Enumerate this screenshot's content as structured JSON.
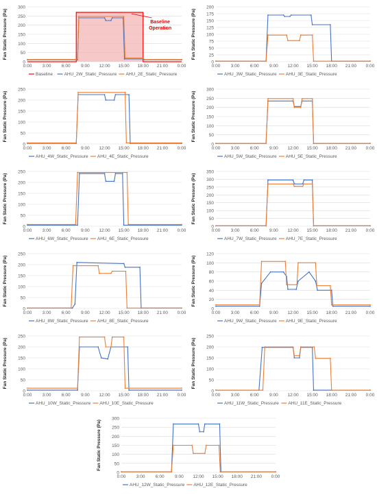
{
  "colors": {
    "blue": "#4472C4",
    "orange": "#ED7D31",
    "baseline": "#FF0000",
    "baseline_fill": "#F4B6B6",
    "grid": "#D9D9D9",
    "axis_text": "#595959",
    "annotation": "#E00000"
  },
  "chart_data": [
    {
      "type": "line",
      "ylabel": "Fan Static Pressure (Pa)",
      "ylim": [
        0,
        300
      ],
      "yticks": [
        0,
        50,
        100,
        150,
        200,
        250,
        300
      ],
      "xticks": [
        "0:00",
        "3:00",
        "6:00",
        "9:00",
        "12:00",
        "15:00",
        "18:00",
        "21:00",
        "0:00"
      ],
      "grid": true,
      "legend": "bottom",
      "annotation": "Baseline Operation",
      "series": [
        {
          "name": "Baseline",
          "color_key": "baseline",
          "x": [
            0,
            7.6,
            7.6,
            18,
            18,
            24
          ],
          "values": [
            0,
            0,
            270,
            270,
            0,
            0
          ]
        },
        {
          "name": "AHU_2W_Static_Pressure",
          "color_key": "blue",
          "x": [
            0,
            7.8,
            8,
            12,
            12.2,
            13,
            13.2,
            14.9,
            15.1,
            18,
            18.2,
            24
          ],
          "values": [
            10,
            10,
            240,
            240,
            225,
            225,
            240,
            240,
            15,
            15,
            10,
            10
          ]
        },
        {
          "name": "AHU_2E_Static_Pressure",
          "color_key": "orange",
          "x": [
            0,
            7.8,
            8,
            15,
            15.2,
            18,
            18.2,
            24
          ],
          "values": [
            12,
            12,
            248,
            248,
            20,
            20,
            12,
            12
          ]
        }
      ]
    },
    {
      "type": "line",
      "ylabel": "Fan Static Pressure (Pa)",
      "ylim": [
        0,
        200
      ],
      "yticks": [
        0,
        25,
        50,
        75,
        100,
        125,
        150,
        175,
        200
      ],
      "xticks": [
        "0:00",
        "3:00",
        "6:00",
        "9:00",
        "12:00",
        "15:00",
        "18:00",
        "21:00",
        "0:00"
      ],
      "grid": true,
      "legend": "bottom",
      "series": [
        {
          "name": "AHU_3W_Static_Pressure",
          "color_key": "blue",
          "x": [
            0,
            7.8,
            8.1,
            10.5,
            10.7,
            11.5,
            11.7,
            14.8,
            15,
            17.8,
            18,
            24
          ],
          "values": [
            2,
            2,
            170,
            170,
            165,
            165,
            170,
            170,
            135,
            135,
            2,
            2
          ]
        },
        {
          "name": "AHU_3E_Static_Pressure",
          "color_key": "orange",
          "x": [
            0,
            7.8,
            8.1,
            11,
            11.2,
            13,
            13.2,
            15,
            15.2,
            24
          ],
          "values": [
            2,
            2,
            97,
            97,
            77,
            77,
            97,
            97,
            2,
            2
          ]
        }
      ]
    },
    {
      "type": "line",
      "ylabel": "Fan Static Pressure (Pa)",
      "ylim": [
        0,
        250
      ],
      "yticks": [
        0,
        50,
        100,
        150,
        200,
        250
      ],
      "xticks": [
        "0:00",
        "3:00",
        "6:00",
        "9:00",
        "12:00",
        "15:00",
        "18:00",
        "21:00",
        "0:00"
      ],
      "grid": true,
      "legend": "bottom",
      "series": [
        {
          "name": "AHU_4W_Static_Pressure",
          "color_key": "blue",
          "x": [
            0,
            7.6,
            7.9,
            12,
            12.2,
            13.5,
            13.7,
            15.8,
            16,
            24
          ],
          "values": [
            3,
            3,
            225,
            225,
            200,
            200,
            225,
            225,
            3,
            3
          ]
        },
        {
          "name": "AHU_4E_Static_Pressure",
          "color_key": "orange",
          "x": [
            0,
            7.6,
            7.9,
            15.2,
            15.4,
            24
          ],
          "values": [
            5,
            5,
            235,
            235,
            5,
            5
          ]
        }
      ]
    },
    {
      "type": "line",
      "ylabel": "Fan Static Pressure (Pa)",
      "ylim": [
        0,
        300
      ],
      "yticks": [
        0,
        50,
        100,
        150,
        200,
        250,
        300
      ],
      "xticks": [
        "0:00",
        "3:00",
        "6:00",
        "9:00",
        "12:00",
        "15:00",
        "18:00",
        "21:00",
        "0:00"
      ],
      "grid": true,
      "legend": "bottom",
      "series": [
        {
          "name": "AHU_5W_Static_Pressure",
          "color_key": "blue",
          "x": [
            0,
            7.8,
            8.1,
            12,
            12.2,
            13.2,
            13.4,
            15,
            15.2,
            24
          ],
          "values": [
            3,
            3,
            235,
            235,
            205,
            205,
            235,
            235,
            3,
            3
          ]
        },
        {
          "name": "AHU_5E_Static_Pressure",
          "color_key": "orange",
          "x": [
            0,
            7.8,
            8.1,
            12,
            12.2,
            13.2,
            13.4,
            15,
            15.2,
            24
          ],
          "values": [
            3,
            3,
            248,
            248,
            200,
            200,
            248,
            248,
            3,
            3
          ]
        }
      ]
    },
    {
      "type": "line",
      "ylabel": "Fan Static Pressure (Pa)",
      "ylim": [
        0,
        250
      ],
      "yticks": [
        0,
        50,
        100,
        150,
        200,
        250
      ],
      "xticks": [
        "0:00",
        "3:00",
        "6:00",
        "9:00",
        "12:00",
        "15:00",
        "18:00",
        "21:00",
        "0:00"
      ],
      "grid": true,
      "legend": "bottom",
      "series": [
        {
          "name": "AHU_6W_Static_Pressure",
          "color_key": "blue",
          "x": [
            0,
            7.8,
            8.1,
            12,
            12.2,
            13.5,
            13.7,
            14.8,
            15,
            24
          ],
          "values": [
            5,
            5,
            240,
            240,
            205,
            205,
            240,
            240,
            5,
            5
          ]
        },
        {
          "name": "AHU_6E_Static_Pressure",
          "color_key": "orange",
          "x": [
            0,
            7.5,
            7.8,
            15.5,
            15.7,
            24
          ],
          "values": [
            8,
            8,
            245,
            245,
            8,
            8
          ]
        }
      ]
    },
    {
      "type": "line",
      "ylabel": "Fan Static Pressure (Pa)",
      "ylim": [
        0,
        350
      ],
      "yticks": [
        0,
        50,
        100,
        150,
        200,
        250,
        300,
        350
      ],
      "xticks": [
        "0:00",
        "3:00",
        "6:00",
        "9:00",
        "12:00",
        "15:00",
        "18:00",
        "21:00",
        "0:00"
      ],
      "grid": true,
      "legend": "bottom",
      "series": [
        {
          "name": "AHU_7W_Static_Pressure",
          "color_key": "blue",
          "x": [
            0,
            7.8,
            8.1,
            12,
            12.2,
            13.5,
            13.7,
            15,
            15.2,
            24
          ],
          "values": [
            3,
            3,
            295,
            295,
            270,
            270,
            295,
            295,
            3,
            3
          ]
        },
        {
          "name": "AHU_7E_Static_Pressure",
          "color_key": "orange",
          "x": [
            0,
            7.8,
            8.1,
            12,
            12.2,
            13.5,
            13.7,
            15,
            15.2,
            24
          ],
          "values": [
            3,
            3,
            270,
            270,
            255,
            255,
            270,
            270,
            3,
            3
          ]
        }
      ]
    },
    {
      "type": "line",
      "ylabel": "Fan Static Pressure (Pa)",
      "ylim": [
        0,
        250
      ],
      "yticks": [
        0,
        50,
        100,
        150,
        200,
        250
      ],
      "xticks": [
        "0:00",
        "3:00",
        "6:00",
        "9:00",
        "12:00",
        "15:00",
        "18:00",
        "21:00",
        "0:00"
      ],
      "grid": true,
      "legend": "bottom",
      "series": [
        {
          "name": "AHU_8W_Static_Pressure",
          "color_key": "blue",
          "x": [
            0,
            7,
            7.4,
            7.7,
            15,
            15.2,
            17.5,
            17.7,
            24
          ],
          "values": [
            2,
            2,
            20,
            210,
            205,
            188,
            188,
            2,
            2
          ]
        },
        {
          "name": "AHU_8E_Static_Pressure",
          "color_key": "orange",
          "x": [
            0,
            6.8,
            7.1,
            11,
            11.2,
            13,
            13.2,
            15.3,
            15.5,
            24
          ],
          "values": [
            2,
            2,
            195,
            195,
            160,
            160,
            170,
            170,
            2,
            2
          ]
        }
      ]
    },
    {
      "type": "line",
      "ylabel": "Fan Static Pressure (Pa)",
      "ylim": [
        0,
        120
      ],
      "yticks": [
        0,
        20,
        40,
        60,
        80,
        100,
        120
      ],
      "xticks": [
        "0:00",
        "3:00",
        "6:00",
        "9:00",
        "12:00",
        "15:00",
        "18:00",
        "21:00",
        "0:00"
      ],
      "grid": true,
      "legend": "bottom",
      "series": [
        {
          "name": "AHU_9W_Static_Pressure",
          "color_key": "blue",
          "x": [
            0,
            6.8,
            7.1,
            8.5,
            10.5,
            11,
            11.2,
            12.5,
            12.8,
            14.5,
            15.5,
            15.8,
            18,
            18.2,
            24
          ],
          "values": [
            5,
            5,
            55,
            80,
            80,
            70,
            42,
            42,
            60,
            80,
            60,
            40,
            40,
            5,
            5
          ]
        },
        {
          "name": "AHU_9E_Static_Pressure",
          "color_key": "orange",
          "x": [
            0,
            6.8,
            7.1,
            10.8,
            11,
            12.6,
            12.8,
            15.5,
            15.7,
            17.8,
            18,
            24
          ],
          "values": [
            8,
            8,
            103,
            103,
            52,
            52,
            100,
            100,
            50,
            50,
            8,
            8
          ]
        }
      ]
    },
    {
      "type": "line",
      "ylabel": "Fan Static Pressure (Pa)",
      "ylim": [
        0,
        250
      ],
      "yticks": [
        0,
        50,
        100,
        150,
        200,
        250
      ],
      "xticks": [
        "0:00",
        "3:00",
        "6:00",
        "9:00",
        "12:00",
        "15:00",
        "18:00",
        "21:00",
        "0:00"
      ],
      "grid": true,
      "legend": "bottom",
      "series": [
        {
          "name": "AHU_10W_Static_Pressure",
          "color_key": "blue",
          "x": [
            0,
            7.8,
            8.1,
            11,
            11.5,
            12.5,
            13,
            15.6,
            15.8,
            24
          ],
          "values": [
            3,
            3,
            200,
            200,
            150,
            145,
            200,
            200,
            3,
            3
          ]
        },
        {
          "name": "AHU_10E_Static_Pressure",
          "color_key": "orange",
          "x": [
            0,
            7.8,
            8.1,
            12,
            12.2,
            13,
            13.2,
            15,
            15.2,
            24
          ],
          "values": [
            12,
            12,
            245,
            245,
            200,
            200,
            245,
            245,
            12,
            12
          ]
        }
      ]
    },
    {
      "type": "line",
      "ylabel": "Fan Static Pressure (Pa)",
      "ylim": [
        0,
        250
      ],
      "yticks": [
        0,
        50,
        100,
        150,
        200,
        250
      ],
      "xticks": [
        "0:00",
        "3:00",
        "6:00",
        "9:00",
        "12:00",
        "15:00",
        "18:00",
        "21:00",
        "0:00"
      ],
      "grid": true,
      "legend": "bottom",
      "series": [
        {
          "name": "AHU_11W_Static_Pressure",
          "color_key": "blue",
          "x": [
            0,
            6.7,
            7.2,
            12,
            12.2,
            13,
            13.2,
            15,
            15.2,
            24
          ],
          "values": [
            3,
            3,
            198,
            198,
            150,
            150,
            198,
            198,
            3,
            3
          ]
        },
        {
          "name": "AHU_11E_Static_Pressure",
          "color_key": "orange",
          "x": [
            0,
            7.3,
            7.6,
            12,
            12.2,
            13,
            13.2,
            15.3,
            15.5,
            17.8,
            18,
            24
          ],
          "values": [
            3,
            3,
            200,
            200,
            160,
            160,
            200,
            200,
            148,
            148,
            3,
            3
          ]
        }
      ]
    },
    {
      "type": "line",
      "ylabel": "Fan Static Pressure (Pa)",
      "ylim": [
        0,
        300
      ],
      "yticks": [
        0,
        50,
        100,
        150,
        200,
        250,
        300
      ],
      "xticks": [
        "0:00",
        "3:00",
        "6:00",
        "9:00",
        "12:00",
        "15:00",
        "18:00",
        "21:00",
        "0:00"
      ],
      "grid": true,
      "legend": "bottom",
      "series": [
        {
          "name": "AHU_12W_Static_Pressure",
          "color_key": "blue",
          "x": [
            0,
            7.8,
            8.1,
            12,
            12.2,
            12.8,
            13,
            15.3,
            15.5,
            24
          ],
          "values": [
            3,
            3,
            268,
            268,
            225,
            225,
            268,
            268,
            3,
            3
          ]
        },
        {
          "name": "AHU_12E_Static_Pressure",
          "color_key": "orange",
          "x": [
            0,
            7.8,
            8.1,
            11,
            11.2,
            13,
            13.2,
            15.2,
            15.4,
            24
          ],
          "values": [
            3,
            3,
            150,
            150,
            105,
            105,
            150,
            150,
            3,
            3
          ]
        }
      ]
    }
  ]
}
